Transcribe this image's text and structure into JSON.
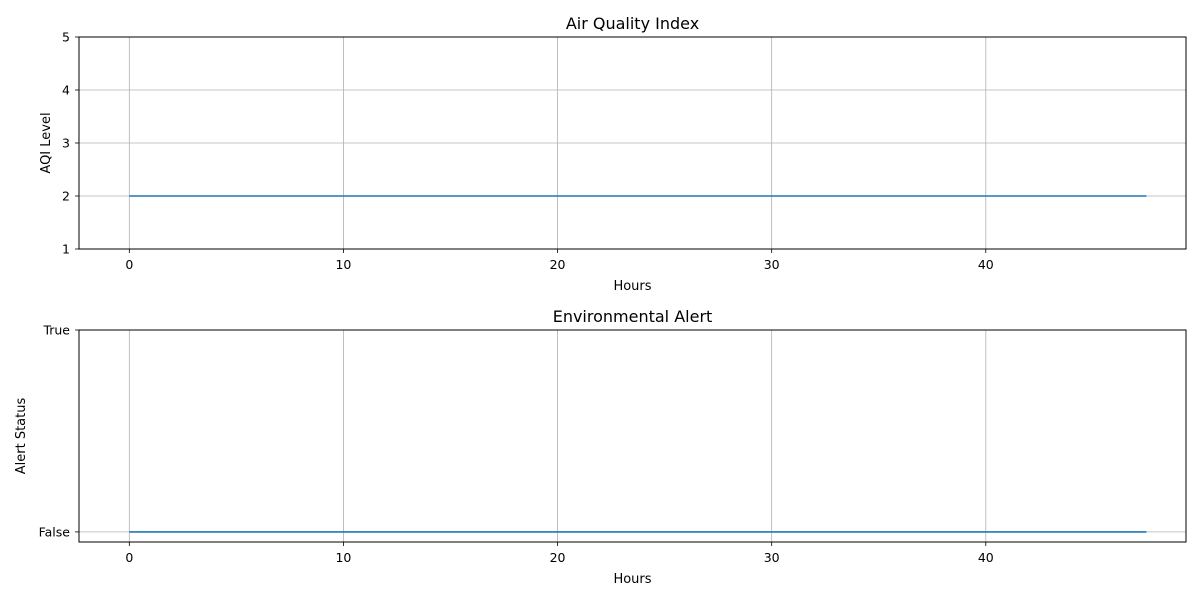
{
  "chart_data": [
    {
      "type": "line",
      "title": "Air Quality Index",
      "xlabel": "Hours",
      "ylabel": "AQI Level",
      "xlim": [
        -2.35,
        49.35
      ],
      "ylim": [
        1,
        5
      ],
      "x_ticks": [
        0,
        10,
        20,
        30,
        40
      ],
      "y_ticks": [
        {
          "value": 1,
          "label": "1"
        },
        {
          "value": 2,
          "label": "2"
        },
        {
          "value": 3,
          "label": "3"
        },
        {
          "value": 4,
          "label": "4"
        },
        {
          "value": 5,
          "label": "5"
        }
      ],
      "grid": true,
      "series": [
        {
          "color": "#1f77b4",
          "x": [
            0,
            47.5
          ],
          "y": [
            2,
            2
          ]
        }
      ]
    },
    {
      "type": "line",
      "title": "Environmental Alert",
      "xlabel": "Hours",
      "ylabel": "Alert Status",
      "xlim": [
        -2.35,
        49.35
      ],
      "ylim": [
        -0.05,
        1
      ],
      "x_ticks": [
        0,
        10,
        20,
        30,
        40
      ],
      "y_ticks": [
        {
          "value": 0,
          "label": "False"
        },
        {
          "value": 1,
          "label": "True"
        }
      ],
      "grid": true,
      "series": [
        {
          "color": "#1f77b4",
          "x": [
            0,
            47.5
          ],
          "y": [
            0,
            0
          ]
        }
      ]
    }
  ]
}
